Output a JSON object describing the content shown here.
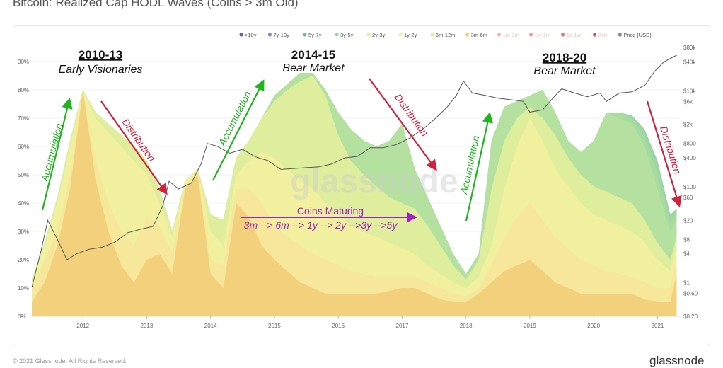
{
  "page_title": "Bitcoin: Realized Cap HODL Waves (Coins > 3m Old)",
  "footer": {
    "copyright": "© 2021 Glassnode. All Rights Reserved.",
    "brand": "glassnode"
  },
  "watermark": "glassnode",
  "colors": {
    "series": [
      "#5d5fb8",
      "#7f86c9",
      "#6ab5b8",
      "#9fd99a",
      "#dff0a2",
      "#f2ef9f",
      "#f7e59a",
      "#f2cf7a",
      "#f4b8a0",
      "#f1a090",
      "#e07878",
      "#c85a6a",
      "#888888"
    ],
    "accumulation": "#1fb51f",
    "distribution": "#d0213f",
    "maturing": "#a020c8",
    "price_line": "#555555"
  },
  "chart_data": {
    "type": "area",
    "stacked": true,
    "title": "Bitcoin: Realized Cap HODL Waves (Coins > 3m Old)",
    "legend_position": "top-right",
    "legend": [
      ">10y",
      "7y-10y",
      "5y-7y",
      "3y-5y",
      "2y-3y",
      "1y-2y",
      "6m-12m",
      "3m-6m",
      "1m-3m",
      "1w-1m",
      "1d-1w",
      "24h",
      "Price [USD]"
    ],
    "x_axis": {
      "ticks": [
        "2012",
        "2013",
        "2014",
        "2015",
        "2016",
        "2017",
        "2018",
        "2019",
        "2020",
        "2021"
      ],
      "range": [
        2011.2,
        2021.35
      ]
    },
    "y_axis_left": {
      "ticks": [
        "0%",
        "10%",
        "20%",
        "30%",
        "40%",
        "50%",
        "60%",
        "70%",
        "80%",
        "90%"
      ],
      "range": [
        0,
        95
      ]
    },
    "y_axis_right": {
      "scale": "log",
      "ticks": [
        "$0.20",
        "$0.60",
        "$1",
        "$4",
        "$8",
        "$20",
        "$60",
        "$100",
        "$400",
        "$800",
        "$2k",
        "$6k",
        "$10k",
        "$40k",
        "$80k"
      ],
      "range": [
        0.2,
        80000
      ]
    },
    "x": [
      2011.2,
      2011.4,
      2011.6,
      2011.8,
      2012.0,
      2012.2,
      2012.4,
      2012.6,
      2012.8,
      2013.0,
      2013.2,
      2013.4,
      2013.6,
      2013.8,
      2014.0,
      2014.2,
      2014.4,
      2014.6,
      2014.8,
      2015.0,
      2015.2,
      2015.4,
      2015.6,
      2015.8,
      2016.0,
      2016.2,
      2016.4,
      2016.6,
      2016.8,
      2017.0,
      2017.2,
      2017.4,
      2017.6,
      2017.8,
      2018.0,
      2018.2,
      2018.4,
      2018.6,
      2018.8,
      2019.0,
      2019.2,
      2019.4,
      2019.6,
      2019.8,
      2020.0,
      2020.2,
      2020.4,
      2020.6,
      2020.8,
      2021.0,
      2021.2,
      2021.3
    ],
    "series": [
      {
        "name": "3m-6m",
        "values": [
          5,
          12,
          25,
          45,
          80,
          48,
          30,
          18,
          12,
          20,
          22,
          15,
          45,
          50,
          15,
          10,
          40,
          35,
          25,
          20,
          16,
          12,
          10,
          8,
          8,
          8,
          8,
          8,
          9,
          10,
          10,
          8,
          6,
          5,
          5,
          8,
          12,
          16,
          18,
          20,
          16,
          12,
          10,
          8,
          8,
          8,
          8,
          8,
          6,
          5,
          5,
          15
        ]
      },
      {
        "name": "6m-12m",
        "values": [
          10,
          20,
          30,
          50,
          80,
          55,
          40,
          30,
          25,
          35,
          32,
          22,
          45,
          52,
          20,
          18,
          45,
          45,
          40,
          32,
          28,
          25,
          22,
          20,
          18,
          16,
          15,
          14,
          14,
          14,
          14,
          12,
          10,
          8,
          7,
          10,
          18,
          28,
          35,
          40,
          34,
          28,
          24,
          20,
          18,
          16,
          15,
          14,
          12,
          10,
          10,
          20
        ]
      },
      {
        "name": "1y-2y",
        "values": [
          12,
          25,
          40,
          60,
          80,
          70,
          65,
          60,
          55,
          50,
          40,
          28,
          48,
          52,
          30,
          25,
          50,
          55,
          58,
          56,
          52,
          48,
          45,
          40,
          36,
          32,
          30,
          28,
          26,
          24,
          22,
          18,
          15,
          12,
          10,
          14,
          25,
          45,
          60,
          70,
          62,
          52,
          46,
          40,
          36,
          34,
          32,
          30,
          26,
          20,
          16,
          25
        ]
      },
      {
        "name": "2y-3y",
        "values": [
          13,
          26,
          42,
          62,
          80,
          72,
          68,
          64,
          60,
          55,
          45,
          30,
          48,
          52,
          36,
          34,
          56,
          62,
          70,
          76,
          80,
          83,
          85,
          78,
          64,
          55,
          50,
          46,
          42,
          40,
          38,
          32,
          25,
          18,
          13,
          20,
          45,
          62,
          70,
          74,
          70,
          64,
          56,
          50,
          46,
          44,
          42,
          40,
          34,
          26,
          20,
          28
        ]
      },
      {
        "name": "3y-5y",
        "values": [
          13,
          26,
          42,
          62,
          80,
          72,
          68,
          64,
          60,
          55,
          45,
          30,
          48,
          52,
          36,
          34,
          56,
          62,
          70,
          78,
          82,
          86,
          86,
          80,
          72,
          66,
          62,
          60,
          62,
          68,
          52,
          42,
          32,
          22,
          15,
          22,
          62,
          74,
          76,
          78,
          80,
          72,
          62,
          58,
          62,
          72,
          70,
          68,
          60,
          45,
          30,
          34
        ]
      },
      {
        "name": "5y-7y",
        "values": [
          13,
          26,
          42,
          62,
          80,
          72,
          68,
          64,
          60,
          55,
          45,
          30,
          48,
          52,
          36,
          34,
          56,
          62,
          70,
          78,
          82,
          86,
          86,
          80,
          72,
          66,
          62,
          60,
          62,
          68,
          52,
          42,
          32,
          22,
          15,
          22,
          62,
          74,
          76,
          78,
          80,
          72,
          62,
          58,
          62,
          72,
          72,
          70,
          63,
          50,
          33,
          36
        ]
      },
      {
        "name": "7y-10y",
        "values": [
          13,
          26,
          42,
          62,
          80,
          72,
          68,
          64,
          60,
          55,
          45,
          30,
          48,
          52,
          36,
          34,
          56,
          62,
          70,
          78,
          82,
          86,
          86,
          80,
          72,
          66,
          62,
          60,
          62,
          68,
          52,
          42,
          32,
          22,
          15,
          22,
          62,
          74,
          76,
          78,
          80,
          72,
          62,
          58,
          62,
          72,
          72,
          71,
          65,
          53,
          35,
          37
        ]
      },
      {
        "name": ">10y",
        "values": [
          13,
          26,
          42,
          62,
          80,
          72,
          68,
          64,
          60,
          55,
          45,
          30,
          48,
          52,
          36,
          34,
          56,
          62,
          70,
          78,
          82,
          86,
          86,
          80,
          72,
          66,
          62,
          60,
          62,
          68,
          52,
          42,
          32,
          22,
          15,
          22,
          62,
          74,
          76,
          78,
          80,
          72,
          62,
          58,
          62,
          72,
          72,
          71,
          66,
          55,
          36,
          38
        ]
      }
    ],
    "price": {
      "name": "Price [USD]",
      "x": [
        2011.2,
        2011.35,
        2011.45,
        2011.6,
        2011.75,
        2011.9,
        2012.1,
        2012.3,
        2012.5,
        2012.7,
        2012.9,
        2013.1,
        2013.25,
        2013.35,
        2013.5,
        2013.7,
        2013.85,
        2013.95,
        2014.1,
        2014.3,
        2014.5,
        2014.7,
        2014.9,
        2015.1,
        2015.3,
        2015.5,
        2015.7,
        2015.9,
        2016.1,
        2016.3,
        2016.5,
        2016.7,
        2016.9,
        2017.1,
        2017.3,
        2017.5,
        2017.7,
        2017.85,
        2017.96,
        2018.1,
        2018.3,
        2018.5,
        2018.7,
        2018.9,
        2019.0,
        2019.2,
        2019.4,
        2019.5,
        2019.7,
        2019.9,
        2020.1,
        2020.2,
        2020.4,
        2020.6,
        2020.8,
        2020.95,
        2021.1,
        2021.3
      ],
      "values": [
        0.8,
        5,
        20,
        8,
        3,
        4,
        5,
        5.5,
        7,
        11,
        13,
        15,
        40,
        130,
        90,
        120,
        300,
        800,
        700,
        500,
        600,
        420,
        350,
        230,
        240,
        250,
        260,
        300,
        400,
        430,
        650,
        650,
        750,
        1000,
        1500,
        2500,
        4500,
        8000,
        16000,
        9000,
        8000,
        7000,
        6500,
        6000,
        3600,
        4000,
        8000,
        11000,
        9000,
        7500,
        9000,
        6000,
        9000,
        9500,
        13000,
        25000,
        40000,
        55000
      ]
    },
    "annotations": [
      {
        "title": "2010-13",
        "subtitle": "Early Visionaries"
      },
      {
        "title": "2014-15",
        "subtitle": "Bear Market"
      },
      {
        "title": "2018-20",
        "subtitle": "Bear Market"
      },
      {
        "text": "Accumulation",
        "type": "accumulation"
      },
      {
        "text": "Distribution",
        "type": "distribution"
      },
      {
        "text": "Accumulation",
        "type": "accumulation"
      },
      {
        "text": "Distribution",
        "type": "distribution"
      },
      {
        "text": "Accumulation",
        "type": "accumulation"
      },
      {
        "text": "Distribution",
        "type": "distribution"
      },
      {
        "text": "Coins Maturing",
        "type": "maturing"
      },
      {
        "text": "3m --> 6m --> 1y --> 2y -->3y -->5y",
        "type": "maturing"
      }
    ]
  }
}
